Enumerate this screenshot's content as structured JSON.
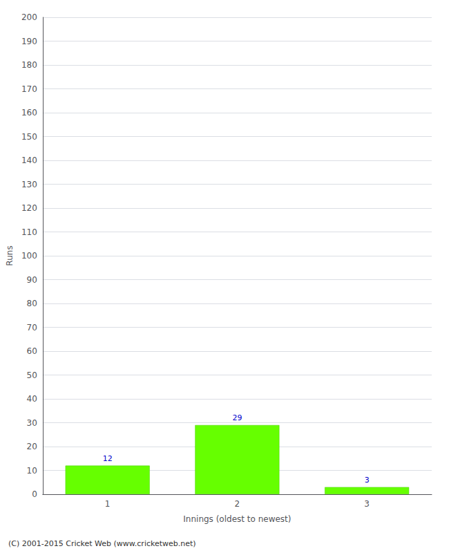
{
  "chart_data": {
    "type": "bar",
    "categories": [
      "1",
      "2",
      "3"
    ],
    "values": [
      12,
      29,
      3
    ],
    "color": "#66ff00",
    "xlabel": "Innings (oldest to newest)",
    "ylabel": "Runs",
    "ylim": [
      0,
      200
    ],
    "yticks": [
      0,
      10,
      20,
      30,
      40,
      50,
      60,
      70,
      80,
      90,
      100,
      110,
      120,
      130,
      140,
      150,
      160,
      170,
      180,
      190,
      200
    ],
    "grid": true,
    "data_labels": true,
    "annotations": [
      "(C) 2001-2015 Cricket Web (www.cricketweb.net)"
    ]
  }
}
